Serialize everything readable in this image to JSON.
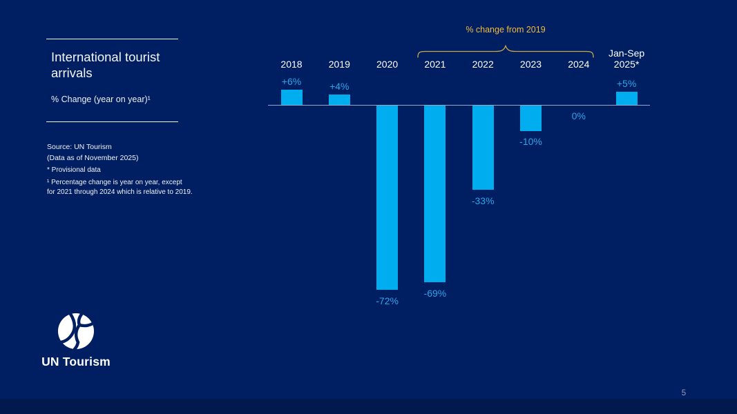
{
  "slide": {
    "title": "International tourist arrivals",
    "subtitle": "% Change (year on year)¹",
    "source_line1": "Source: UN Tourism",
    "source_line2": "(Data as of November 2025)",
    "footnote1": "* Provisional data",
    "footnote2": "¹ Percentage change is year on year, except\nfor 2021 through 2024 which is relative to 2019.",
    "logo_wordmark": "UN Tourism",
    "page_number": "5"
  },
  "chart_data": {
    "type": "bar",
    "title": "International tourist arrivals",
    "ylabel": "% Change (year on year)",
    "categories": [
      "2018",
      "2019",
      "2020",
      "2021",
      "2022",
      "2023",
      "2024",
      "Jan-Sep\n2025*"
    ],
    "values": [
      6,
      4,
      -72,
      -69,
      -33,
      -10,
      0,
      5
    ],
    "value_labels": [
      "+6%",
      "+4%",
      "-72%",
      "-69%",
      "-33%",
      "-10%",
      "0%",
      "+5%"
    ],
    "annotation": {
      "text": "% change from 2019",
      "span_categories": [
        "2021",
        "2022",
        "2023",
        "2024"
      ]
    },
    "ylim": [
      -80,
      10
    ],
    "gridlines": false,
    "legend": "none",
    "bar_color": "#00AEEF",
    "label_color": "#2BA5E8",
    "annotation_color": "#F2BC3B",
    "brace_color": "#CDA849",
    "axis_color": "#CDD4E6"
  },
  "colors": {
    "background": "#001E62",
    "footer_band": "#02194E",
    "text": "#FFFFFF",
    "page_number": "#959EB6"
  }
}
